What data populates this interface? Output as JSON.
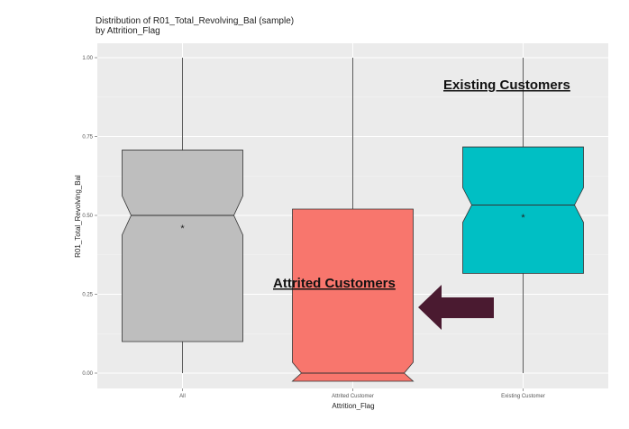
{
  "chart_data": {
    "type": "boxplot",
    "title": "Distribution of R01_Total_Revolving_Bal (sample)",
    "subtitle": "by Attrition_Flag",
    "xlabel": "Attrition_Flag",
    "ylabel": "R01_Total_Revolving_Bal",
    "ylim": [
      0,
      1
    ],
    "yticks": [
      "0.00",
      "0.25",
      "0.50",
      "0.75",
      "1.00"
    ],
    "ytick_values": [
      0,
      0.25,
      0.5,
      0.75,
      1.0
    ],
    "grid": true,
    "notched": true,
    "categories": [
      "All",
      "Attrited Customer",
      "Existing Customer"
    ],
    "boxes": [
      {
        "category": "All",
        "min": 0,
        "q1": 0.1,
        "median": 0.5,
        "q3": 0.707,
        "max": 1.0,
        "mean": 0.46,
        "color": "#bebebe"
      },
      {
        "category": "Attrited Customer",
        "min": 0,
        "q1": 0,
        "median": 0,
        "q3": 0.52,
        "max": 1.0,
        "color": "#f8766d"
      },
      {
        "category": "Existing Customer",
        "min": 0,
        "q1": 0.316,
        "median": 0.533,
        "q3": 0.717,
        "max": 1.0,
        "mean": 0.494,
        "color": "#00bfc4"
      }
    ],
    "annotations": [
      {
        "text": "Existing Customers",
        "near": "Existing Customer"
      },
      {
        "text": "Attrited Customers",
        "near": "Attrited Customer"
      }
    ],
    "arrow_color": "#4a1a30"
  }
}
